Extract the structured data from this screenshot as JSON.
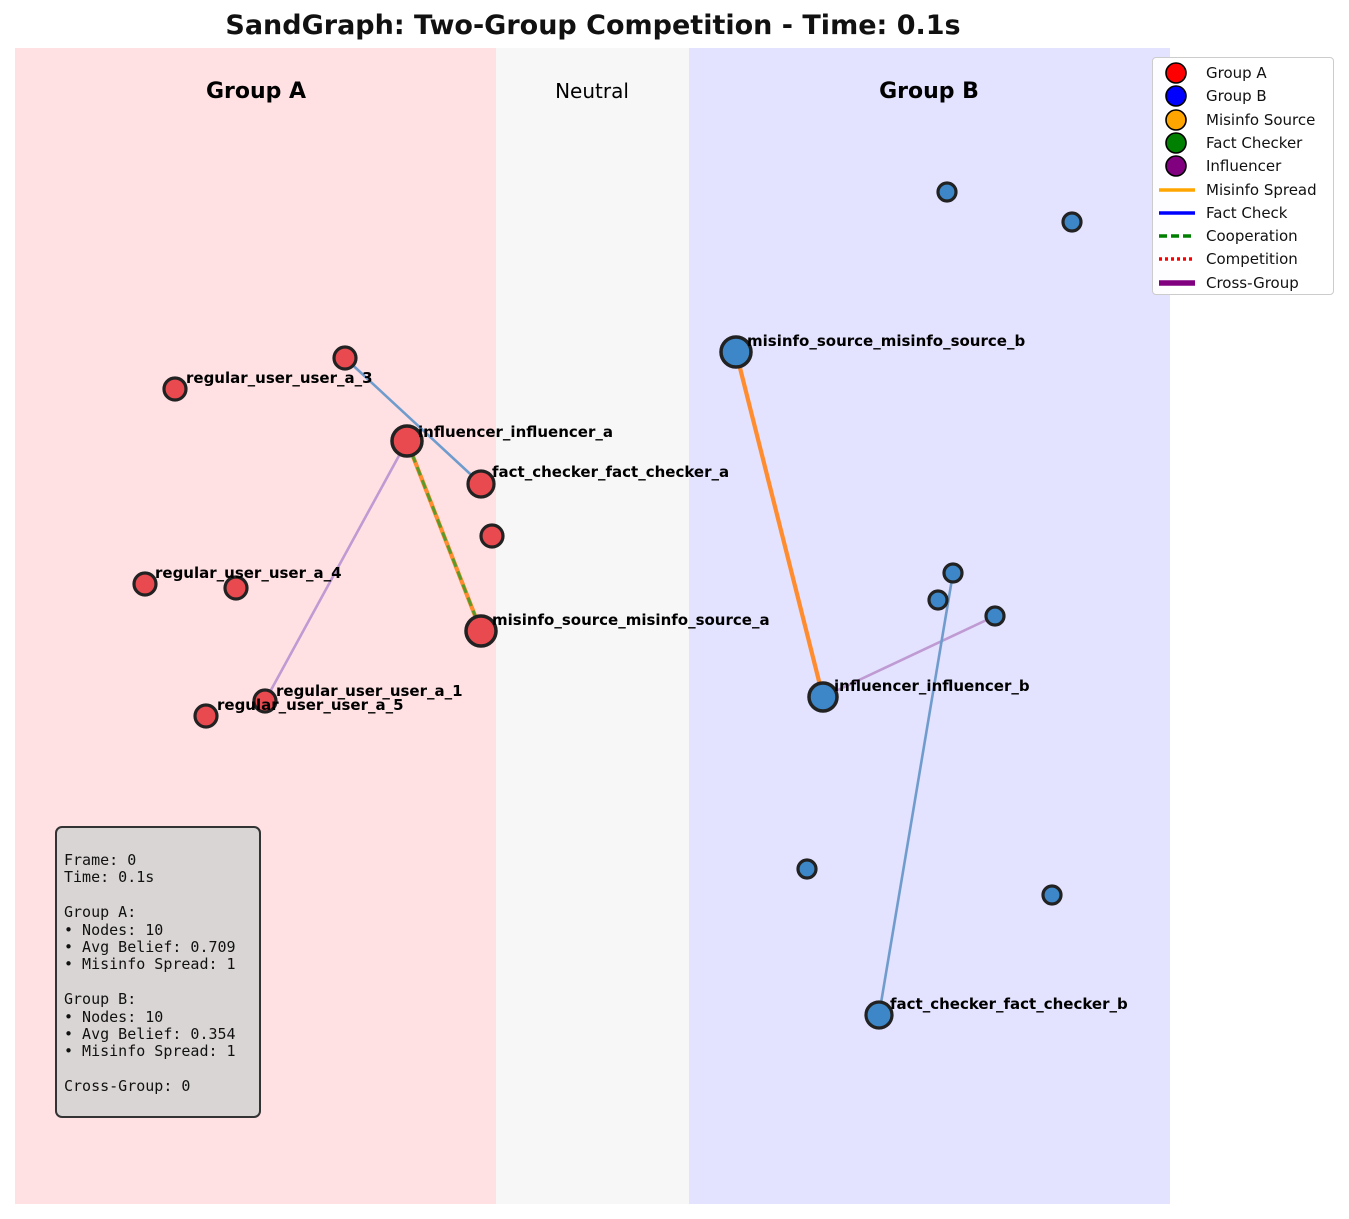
{
  "title": "SandGraph: Two-Group Competition - Time: 0.1s",
  "zones": {
    "group_a": {
      "label": "Group A",
      "color": "#ffe1e4"
    },
    "neutral": {
      "label": "Neutral",
      "color": "#f7f7f7"
    },
    "group_b": {
      "label": "Group B",
      "color": "#e3e2ff"
    }
  },
  "legend": [
    {
      "label": "Group A",
      "kind": "marker",
      "color": "#ff0000"
    },
    {
      "label": "Group B",
      "kind": "marker",
      "color": "#0000ff"
    },
    {
      "label": "Misinfo Source",
      "kind": "marker",
      "color": "#ffa500"
    },
    {
      "label": "Fact Checker",
      "kind": "marker",
      "color": "#008000"
    },
    {
      "label": "Influencer",
      "kind": "marker",
      "color": "#800080"
    },
    {
      "label": "Misinfo Spread",
      "kind": "solid",
      "color": "#ffa500"
    },
    {
      "label": "Fact Check",
      "kind": "solid",
      "color": "#0000ff"
    },
    {
      "label": "Cooperation",
      "kind": "dashed",
      "color": "#008000"
    },
    {
      "label": "Competition",
      "kind": "dotted",
      "color": "#ff0000"
    },
    {
      "label": "Cross-Group",
      "kind": "thick",
      "color": "#800080"
    }
  ],
  "stats": {
    "frame": "Frame: 0",
    "time": "Time: 0.1s",
    "group_a_header": "Group A:",
    "group_a_nodes": "• Nodes: 10",
    "group_a_belief": "• Avg Belief: 0.709",
    "group_a_spread": "• Misinfo Spread: 1",
    "group_b_header": "Group B:",
    "group_b_nodes": "• Nodes: 10",
    "group_b_belief": "• Avg Belief: 0.354",
    "group_b_spread": "• Misinfo Spread: 1",
    "cross_group": "Cross-Group: 0"
  },
  "node_colors": {
    "group_a": "#e84a4f",
    "group_b": "#3d87c8",
    "outline": "#222222"
  },
  "edge_colors": {
    "fact_check": "#6f9ccc",
    "influence": "#bf9ad3",
    "misinfo": "#ff8c2e",
    "cooperation": "#5a9a2a"
  },
  "nodes": [
    {
      "id": "a_user_3",
      "group": "A",
      "role": "regular",
      "label": "regular_user_user_a_3"
    },
    {
      "id": "a_user_3_label_anchor",
      "group": "A",
      "role": "regular",
      "label": ""
    },
    {
      "id": "a_influencer",
      "group": "A",
      "role": "influencer",
      "label": "influencer_influencer_a"
    },
    {
      "id": "a_fact_checker",
      "group": "A",
      "role": "fact_checker",
      "label": "fact_checker_fact_checker_a"
    },
    {
      "id": "a_unlabeled_1",
      "group": "A",
      "role": "regular",
      "label": ""
    },
    {
      "id": "a_user_4",
      "group": "A",
      "role": "regular",
      "label": "regular_user_user_a_4"
    },
    {
      "id": "a_unlabeled_2",
      "group": "A",
      "role": "regular",
      "label": ""
    },
    {
      "id": "a_misinfo_source",
      "group": "A",
      "role": "misinfo_source",
      "label": "misinfo_source_misinfo_source_a"
    },
    {
      "id": "a_user_1",
      "group": "A",
      "role": "regular",
      "label": "regular_user_user_a_1"
    },
    {
      "id": "a_user_5",
      "group": "A",
      "role": "regular",
      "label": "regular_user_user_a_5"
    },
    {
      "id": "b_unlabeled_1",
      "group": "B",
      "role": "regular",
      "label": ""
    },
    {
      "id": "b_unlabeled_2",
      "group": "B",
      "role": "regular",
      "label": ""
    },
    {
      "id": "b_misinfo_source",
      "group": "B",
      "role": "misinfo_source",
      "label": "misinfo_source_misinfo_source_b"
    },
    {
      "id": "b_unlabeled_3",
      "group": "B",
      "role": "regular",
      "label": ""
    },
    {
      "id": "b_unlabeled_4",
      "group": "B",
      "role": "regular",
      "label": ""
    },
    {
      "id": "b_unlabeled_5",
      "group": "B",
      "role": "regular",
      "label": ""
    },
    {
      "id": "b_influencer",
      "group": "B",
      "role": "influencer",
      "label": "influencer_influencer_b"
    },
    {
      "id": "b_unlabeled_6",
      "group": "B",
      "role": "regular",
      "label": ""
    },
    {
      "id": "b_unlabeled_7",
      "group": "B",
      "role": "regular",
      "label": ""
    },
    {
      "id": "b_fact_checker",
      "group": "B",
      "role": "fact_checker",
      "label": "fact_checker_fact_checker_b"
    }
  ],
  "edges": [
    {
      "from": "a_user_3_label_anchor",
      "to": "a_fact_checker",
      "type": "fact_check"
    },
    {
      "from": "a_influencer",
      "to": "a_user_1",
      "type": "influence"
    },
    {
      "from": "a_influencer",
      "to": "a_misinfo_source",
      "type": "misinfo_cooperation"
    },
    {
      "from": "b_misinfo_source",
      "to": "b_influencer",
      "type": "misinfo"
    },
    {
      "from": "b_influencer",
      "to": "b_unlabeled_5",
      "type": "influence"
    },
    {
      "from": "b_unlabeled_3",
      "to": "b_fact_checker",
      "type": "fact_check"
    }
  ]
}
